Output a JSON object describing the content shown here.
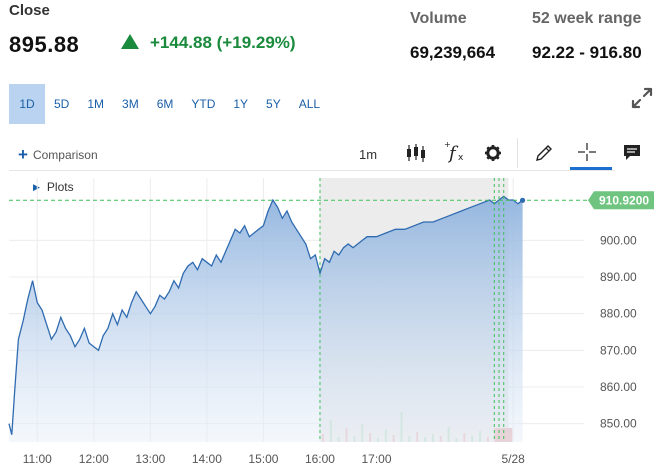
{
  "quote": {
    "close_label": "Close",
    "close_price": "895.88",
    "change": "+144.88 (+19.29%)",
    "change_direction": "up",
    "up_color": "#1a8a3c"
  },
  "stats": {
    "volume_label": "Volume",
    "volume_value": "69,239,664",
    "range_label": "52 week range",
    "range_value": "92.22 - 916.80"
  },
  "ranges": [
    "1D",
    "5D",
    "1M",
    "3M",
    "6M",
    "YTD",
    "1Y",
    "5Y",
    "ALL"
  ],
  "active_range": "1D",
  "toolbar": {
    "comparison_label": "Comparison",
    "interval": "1m",
    "icons": [
      "candlestick-icon",
      "function-icon",
      "gear-icon",
      "pencil-icon",
      "crosshair-icon",
      "comment-icon"
    ]
  },
  "plots_label": "Plots",
  "chart_data": {
    "type": "area",
    "current_price_label": "910.9200",
    "current_price": 910.92,
    "ylim": [
      845,
      917
    ],
    "y_ticks": [
      "900.00",
      "890.00",
      "880.00",
      "870.00",
      "860.00",
      "850.00"
    ],
    "y_tick_values": [
      900,
      890,
      880,
      870,
      860,
      850
    ],
    "x_ticks": [
      "11:00",
      "12:00",
      "13:00",
      "14:00",
      "15:00",
      "16:00",
      "17:00",
      "5/28"
    ],
    "series_color": "#2f6bb0",
    "fill_color": "#a9c6e8",
    "after_hours_shade": "#ececec",
    "price_line_color": "#3fbf5a",
    "price_points": [
      [
        "10:30",
        850
      ],
      [
        "10:33",
        847
      ],
      [
        "10:36",
        859
      ],
      [
        "10:40",
        873
      ],
      [
        "10:45",
        878
      ],
      [
        "10:50",
        884
      ],
      [
        "10:55",
        889
      ],
      [
        "11:00",
        883
      ],
      [
        "11:05",
        881
      ],
      [
        "11:10",
        877
      ],
      [
        "11:15",
        873
      ],
      [
        "11:20",
        875
      ],
      [
        "11:25",
        879
      ],
      [
        "11:30",
        876
      ],
      [
        "11:35",
        874
      ],
      [
        "11:40",
        871
      ],
      [
        "11:45",
        873
      ],
      [
        "11:50",
        876
      ],
      [
        "11:55",
        872
      ],
      [
        "12:00",
        871
      ],
      [
        "12:05",
        870
      ],
      [
        "12:10",
        874
      ],
      [
        "12:15",
        876
      ],
      [
        "12:20",
        880
      ],
      [
        "12:25",
        877
      ],
      [
        "12:30",
        881
      ],
      [
        "12:35",
        879
      ],
      [
        "12:40",
        883
      ],
      [
        "12:45",
        886
      ],
      [
        "12:50",
        884
      ],
      [
        "12:55",
        882
      ],
      [
        "13:00",
        880
      ],
      [
        "13:05",
        882
      ],
      [
        "13:10",
        885
      ],
      [
        "13:15",
        884
      ],
      [
        "13:20",
        886
      ],
      [
        "13:25",
        889
      ],
      [
        "13:30",
        887
      ],
      [
        "13:35",
        891
      ],
      [
        "13:40",
        893
      ],
      [
        "13:45",
        894
      ],
      [
        "13:50",
        892
      ],
      [
        "13:55",
        895
      ],
      [
        "14:00",
        894
      ],
      [
        "14:05",
        893
      ],
      [
        "14:10",
        896
      ],
      [
        "14:15",
        894
      ],
      [
        "14:20",
        897
      ],
      [
        "14:25",
        900
      ],
      [
        "14:30",
        903
      ],
      [
        "14:35",
        902
      ],
      [
        "14:40",
        904
      ],
      [
        "14:45",
        901
      ],
      [
        "14:50",
        902
      ],
      [
        "14:55",
        903
      ],
      [
        "15:00",
        904
      ],
      [
        "15:05",
        908
      ],
      [
        "15:10",
        911
      ],
      [
        "15:15",
        909
      ],
      [
        "15:20",
        906
      ],
      [
        "15:25",
        908
      ],
      [
        "15:30",
        905
      ],
      [
        "15:35",
        903
      ],
      [
        "15:40",
        901
      ],
      [
        "15:45",
        899
      ],
      [
        "15:50",
        895
      ],
      [
        "15:55",
        896
      ],
      [
        "16:00",
        891
      ],
      [
        "16:05",
        895
      ],
      [
        "16:10",
        894
      ],
      [
        "16:15",
        897
      ],
      [
        "16:20",
        896
      ],
      [
        "16:25",
        898
      ],
      [
        "16:30",
        899
      ],
      [
        "16:35",
        898
      ],
      [
        "16:40",
        899
      ],
      [
        "16:45",
        900
      ],
      [
        "16:50",
        901
      ],
      [
        "16:55",
        901
      ],
      [
        "17:00",
        901
      ],
      [
        "17:10",
        902
      ],
      [
        "17:20",
        903
      ],
      [
        "17:30",
        903
      ],
      [
        "17:40",
        904
      ],
      [
        "17:50",
        905
      ],
      [
        "18:00",
        905
      ],
      [
        "18:10",
        906
      ],
      [
        "18:20",
        907
      ],
      [
        "18:30",
        908
      ],
      [
        "18:40",
        909
      ],
      [
        "18:50",
        910
      ],
      [
        "19:00",
        911
      ],
      [
        "19:05",
        910
      ],
      [
        "19:10",
        911
      ],
      [
        "19:15",
        912
      ],
      [
        "19:20",
        911
      ],
      [
        "19:25",
        911
      ],
      [
        "19:30",
        910
      ],
      [
        "19:35",
        910.92
      ]
    ]
  }
}
